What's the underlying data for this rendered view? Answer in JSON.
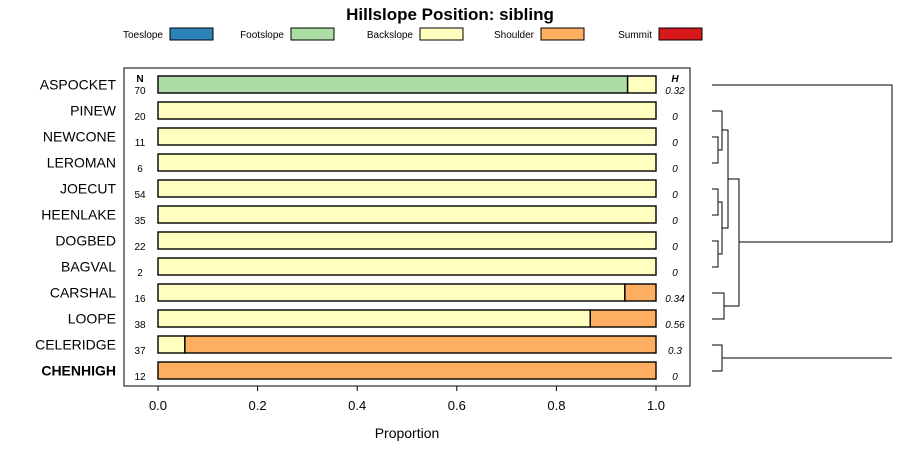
{
  "chart_data": {
    "type": "bar",
    "stacked": true,
    "orientation": "horizontal",
    "title": "Hillslope Position: sibling",
    "xlabel": "Proportion",
    "ylabel": "",
    "xlim": [
      0,
      1
    ],
    "x_ticks": [
      "0.0",
      "0.2",
      "0.4",
      "0.6",
      "0.8",
      "1.0"
    ],
    "legend_position": "top",
    "n_header": "N",
    "h_header": "H",
    "series": [
      {
        "name": "Toeslope",
        "color": "#2b83ba"
      },
      {
        "name": "Footslope",
        "color": "#abdda4"
      },
      {
        "name": "Backslope",
        "color": "#ffffbf"
      },
      {
        "name": "Shoulder",
        "color": "#fdae61"
      },
      {
        "name": "Summit",
        "color": "#d7191c"
      }
    ],
    "rows": [
      {
        "label": "ASPOCKET",
        "n": "70",
        "h": "0.32",
        "bold": false,
        "values": [
          0,
          0.943,
          0.057,
          0,
          0
        ]
      },
      {
        "label": "PINEW",
        "n": "20",
        "h": "0",
        "bold": false,
        "values": [
          0,
          0,
          1,
          0,
          0
        ]
      },
      {
        "label": "NEWCONE",
        "n": "11",
        "h": "0",
        "bold": false,
        "values": [
          0,
          0,
          1,
          0,
          0
        ]
      },
      {
        "label": "LEROMAN",
        "n": "6",
        "h": "0",
        "bold": false,
        "values": [
          0,
          0,
          1,
          0,
          0
        ]
      },
      {
        "label": "JOECUT",
        "n": "54",
        "h": "0",
        "bold": false,
        "values": [
          0,
          0,
          1,
          0,
          0
        ]
      },
      {
        "label": "HEENLAKE",
        "n": "35",
        "h": "0",
        "bold": false,
        "values": [
          0,
          0,
          1,
          0,
          0
        ]
      },
      {
        "label": "DOGBED",
        "n": "22",
        "h": "0",
        "bold": false,
        "values": [
          0,
          0,
          1,
          0,
          0
        ]
      },
      {
        "label": "BAGVAL",
        "n": "2",
        "h": "0",
        "bold": false,
        "values": [
          0,
          0,
          1,
          0,
          0
        ]
      },
      {
        "label": "CARSHAL",
        "n": "16",
        "h": "0.34",
        "bold": false,
        "values": [
          0,
          0,
          0.9375,
          0.0625,
          0
        ]
      },
      {
        "label": "LOOPE",
        "n": "38",
        "h": "0.56",
        "bold": false,
        "values": [
          0,
          0,
          0.868,
          0.132,
          0
        ]
      },
      {
        "label": "CELERIDGE",
        "n": "37",
        "h": "0.3",
        "bold": false,
        "values": [
          0,
          0,
          0.054,
          0.946,
          0
        ]
      },
      {
        "label": "CHENHIGH",
        "n": "12",
        "h": "0",
        "bold": true,
        "values": [
          0,
          0,
          0,
          1,
          0
        ]
      }
    ]
  }
}
